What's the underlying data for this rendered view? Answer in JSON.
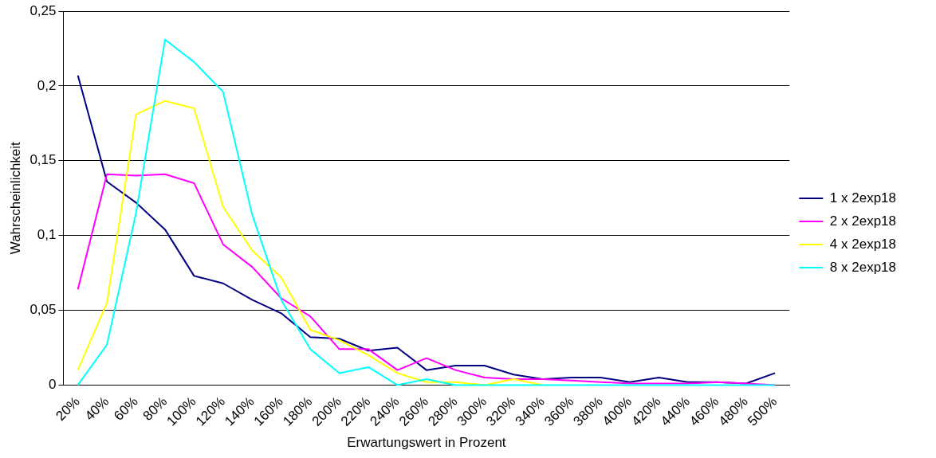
{
  "chart_data": {
    "type": "line",
    "xlabel": "Erwartungswert in Prozent",
    "ylabel": "Wahrscheinlichkeit",
    "categories": [
      "20%",
      "40%",
      "60%",
      "80%",
      "100%",
      "120%",
      "140%",
      "160%",
      "180%",
      "200%",
      "220%",
      "240%",
      "260%",
      "280%",
      "300%",
      "320%",
      "340%",
      "360%",
      "380%",
      "400%",
      "420%",
      "440%",
      "460%",
      "480%",
      "500%"
    ],
    "series": [
      {
        "name": "1 x 2exp18",
        "color": "#000080",
        "values": [
          0.207,
          0.136,
          0.122,
          0.104,
          0.073,
          0.068,
          0.057,
          0.048,
          0.032,
          0.031,
          0.023,
          0.025,
          0.01,
          0.013,
          0.013,
          0.007,
          0.004,
          0.005,
          0.005,
          0.002,
          0.005,
          0.002,
          0.002,
          0.001,
          0.008
        ]
      },
      {
        "name": "2 x 2exp18",
        "color": "#ff00ff",
        "values": [
          0.064,
          0.141,
          0.14,
          0.141,
          0.135,
          0.094,
          0.079,
          0.058,
          0.046,
          0.024,
          0.024,
          0.01,
          0.018,
          0.01,
          0.005,
          0.004,
          0.004,
          0.003,
          0.002,
          0.001,
          0.001,
          0.001,
          0.002,
          0.001,
          0
        ]
      },
      {
        "name": "4 x 2exp18",
        "color": "#ffff00",
        "values": [
          0.01,
          0.055,
          0.181,
          0.19,
          0.185,
          0.119,
          0.09,
          0.072,
          0.037,
          0.03,
          0.02,
          0.008,
          0.002,
          0.002,
          0,
          0.004,
          0,
          null,
          null,
          null,
          null,
          null,
          null,
          null,
          null
        ]
      },
      {
        "name": "8 x 2exp18",
        "color": "#00ffff",
        "values": [
          0,
          0.027,
          0.115,
          0.231,
          0.216,
          0.196,
          0.114,
          0.057,
          0.024,
          0.008,
          0.012,
          0,
          0.004,
          0,
          0,
          0,
          0,
          0,
          0,
          0,
          0,
          0,
          0,
          0,
          0
        ]
      }
    ],
    "ylim": [
      0,
      0.25
    ],
    "yticks": [
      {
        "value": 0,
        "label": "0"
      },
      {
        "value": 0.05,
        "label": "0,05"
      },
      {
        "value": 0.1,
        "label": "0,1"
      },
      {
        "value": 0.15,
        "label": "0,15"
      },
      {
        "value": 0.2,
        "label": "0,2"
      },
      {
        "value": 0.25,
        "label": "0,25"
      }
    ],
    "grid": "y",
    "legend": "right",
    "marker": "none",
    "line_style": "solid"
  }
}
